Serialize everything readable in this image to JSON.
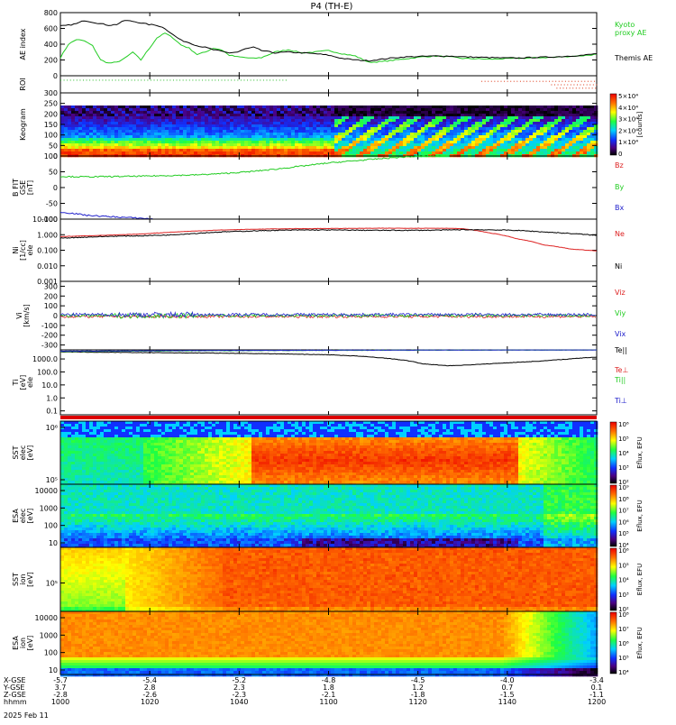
{
  "title": "P4 (TH-E)",
  "date": "2025 Feb 11",
  "colors": {
    "black": "#000000",
    "green": "#22cc22",
    "red": "#dd2222",
    "blue": "#2222cc",
    "ae_green": "#22cc22",
    "roi_red": "#dd3311",
    "roi_green": "#22bb22"
  },
  "chart_data": [
    {
      "type": "line",
      "id": "ae",
      "ylabel": "AE index",
      "ylim": [
        0,
        800
      ],
      "yticks": [
        0,
        200,
        400,
        600,
        800
      ],
      "series": [
        {
          "name": "Kyoto",
          "name2": "proxy AE",
          "color": "#22cc22",
          "x": [
            1000,
            1003,
            1006,
            1009,
            1012,
            1015,
            1018,
            1021,
            1024,
            1027,
            1030,
            1033,
            1036,
            1039,
            1042,
            1045,
            1048,
            1051,
            1054,
            1057,
            1060,
            1063,
            1066,
            1069,
            1072,
            1075,
            1080,
            1085,
            1090,
            1095,
            1100,
            1105,
            1110,
            1115,
            1120,
            1125,
            1130,
            1135,
            1140,
            1145,
            1150,
            1155,
            1160,
            1165,
            1170,
            1175,
            1180,
            1185,
            1190,
            1195,
            1200
          ],
          "y": [
            230,
            400,
            460,
            440,
            380,
            200,
            160,
            170,
            220,
            300,
            200,
            340,
            480,
            540,
            480,
            390,
            350,
            270,
            300,
            350,
            330,
            260,
            240,
            230,
            220,
            230,
            300,
            330,
            290,
            300,
            320,
            280,
            250,
            170,
            180,
            200,
            220,
            240,
            250,
            240,
            220,
            215,
            210,
            215,
            220,
            225,
            230,
            235,
            245,
            255,
            270
          ]
        },
        {
          "name": "Themis AE",
          "color": "#000000",
          "x": [
            1000,
            1003,
            1006,
            1009,
            1012,
            1015,
            1018,
            1021,
            1024,
            1027,
            1030,
            1033,
            1036,
            1039,
            1042,
            1045,
            1048,
            1051,
            1054,
            1057,
            1060,
            1063,
            1066,
            1069,
            1072,
            1075,
            1080,
            1085,
            1090,
            1095,
            1100,
            1105,
            1110,
            1115,
            1120,
            1125,
            1130,
            1135,
            1140,
            1145,
            1150,
            1155,
            1160,
            1165,
            1170,
            1175,
            1180,
            1185,
            1190,
            1195,
            1200
          ],
          "y": [
            630,
            640,
            660,
            700,
            680,
            660,
            640,
            650,
            700,
            690,
            670,
            650,
            640,
            600,
            520,
            450,
            420,
            380,
            360,
            330,
            310,
            290,
            300,
            340,
            360,
            320,
            290,
            300,
            290,
            280,
            260,
            220,
            200,
            190,
            210,
            230,
            240,
            245,
            250,
            250,
            240,
            235,
            230,
            225,
            225,
            230,
            235,
            240,
            250,
            260,
            280
          ]
        }
      ]
    },
    {
      "type": "scatter",
      "id": "roi",
      "ylabel": "ROI",
      "ylim": [
        0,
        3
      ],
      "series": [
        {
          "name": "ROI green",
          "color": "#22bb22",
          "x_start": 1000,
          "x_end": 1085,
          "y": 2.3
        },
        {
          "name": "ROI red",
          "color": "#dd3311",
          "segments": [
            [
              1157,
              1200,
              2.1
            ],
            [
              1183,
              1200,
              1.5
            ],
            [
              1185,
              1200,
              0.9
            ]
          ]
        }
      ]
    },
    {
      "type": "heatmap",
      "id": "keogram",
      "ylabel": "Keogram",
      "ylim": [
        0,
        300
      ],
      "yticks": [
        0,
        50,
        100,
        150,
        200,
        250,
        300
      ],
      "colorbar": {
        "label": "[counts]",
        "ticks": [
          "0",
          "1×10⁴",
          "2×10⁴",
          "3×10⁴",
          "4×10⁴",
          "5×10⁴"
        ]
      }
    },
    {
      "type": "line",
      "id": "bfield",
      "ylabel": "B FIT GSE [nT]",
      "ylabel_lines": [
        "B FIT",
        "GSE",
        "[nT]"
      ],
      "ylim": [
        -100,
        100
      ],
      "yticks": [
        -100,
        -50,
        0,
        50,
        100
      ],
      "series": [
        {
          "name": "Bz",
          "color": "#dd2222",
          "x": [],
          "y": []
        },
        {
          "name": "By",
          "color": "#22cc22",
          "x": [
            1000,
            1010,
            1020,
            1030,
            1040,
            1050,
            1060,
            1070,
            1080,
            1090,
            1100,
            1110,
            1120,
            1130,
            1140,
            1145
          ],
          "y": [
            35,
            34,
            35,
            36,
            38,
            40,
            44,
            50,
            58,
            68,
            78,
            85,
            92,
            98,
            100,
            102
          ]
        },
        {
          "name": "Bx",
          "color": "#2222cc",
          "x": [
            1000,
            1005,
            1010,
            1020,
            1030,
            1035
          ],
          "y": [
            -78,
            -82,
            -88,
            -93,
            -97,
            -100
          ]
        }
      ]
    },
    {
      "type": "line",
      "id": "density",
      "ylabel": "Ni [1/cc]",
      "ylabel_lines": [
        "Ni",
        "[1/cc]",
        "ele"
      ],
      "scale": "log",
      "ylim": [
        0.001,
        10
      ],
      "yticks": [
        0.001,
        0.01,
        0.1,
        1.0,
        10.0
      ],
      "yticklabels": [
        "0.001",
        "0.010",
        "0.100",
        "1.000",
        "10.000"
      ],
      "series": [
        {
          "name": "Ne",
          "color": "#dd2222",
          "x": [
            1000,
            1010,
            1020,
            1030,
            1040,
            1050,
            1060,
            1070,
            1080,
            1090,
            1100,
            1110,
            1120,
            1130,
            1140,
            1145,
            1150,
            1160,
            1170,
            1180,
            1190,
            1200
          ],
          "y": [
            0.75,
            0.85,
            0.95,
            1.1,
            1.4,
            1.7,
            2.0,
            2.2,
            2.35,
            2.45,
            2.5,
            2.55,
            2.6,
            2.6,
            2.6,
            2.6,
            2.4,
            1.3,
            0.55,
            0.22,
            0.12,
            0.09
          ]
        },
        {
          "name": "Ni",
          "color": "#000000",
          "x": [
            1000,
            1010,
            1020,
            1030,
            1040,
            1050,
            1060,
            1070,
            1080,
            1090,
            1100,
            1110,
            1120,
            1130,
            1140,
            1145,
            1150,
            1160,
            1170,
            1180,
            1190,
            1200
          ],
          "y": [
            0.6,
            0.7,
            0.8,
            0.85,
            0.95,
            1.2,
            1.5,
            1.7,
            1.9,
            2.0,
            2.0,
            1.95,
            1.9,
            1.9,
            1.95,
            2.0,
            2.1,
            2.05,
            1.9,
            1.5,
            1.2,
            0.9
          ]
        }
      ]
    },
    {
      "type": "line",
      "id": "velocity",
      "ylabel": "Vi [km/s]",
      "ylabel_lines": [
        "Vi",
        "[km/s]"
      ],
      "ylim": [
        -350,
        350
      ],
      "yticks": [
        -300,
        -200,
        -100,
        0,
        100,
        200,
        300
      ],
      "series": [
        {
          "name": "Viz",
          "color": "#dd2222",
          "mean": -10,
          "noise": 25
        },
        {
          "name": "Viy",
          "color": "#22cc22",
          "mean": 0,
          "noise": 30
        },
        {
          "name": "Vix",
          "color": "#2222cc",
          "mean": 10,
          "noise": 30
        }
      ]
    },
    {
      "type": "line",
      "id": "temperature",
      "ylabel": "Ti [eV]",
      "ylabel_lines": [
        "Ti",
        "[eV]",
        "ele"
      ],
      "scale": "log",
      "ylim": [
        0.05,
        5000
      ],
      "yticks": [
        0.1,
        1.0,
        10.0,
        100.0,
        1000.0
      ],
      "yticklabels": [
        "0.1",
        "1.0",
        "10.0",
        "100.0",
        "1000.0"
      ],
      "legend": [
        "Te||",
        "Te⊥",
        "Ti||",
        "Ti⊥"
      ],
      "series": [
        {
          "name": "Ti",
          "color": "#000000",
          "x": [
            1000,
            1020,
            1040,
            1060,
            1080,
            1100,
            1110,
            1120,
            1130,
            1135,
            1140,
            1145,
            1150,
            1160,
            1170,
            1180,
            1190,
            1200
          ],
          "y": [
            3500,
            3200,
            3000,
            2800,
            2500,
            2100,
            1700,
            1200,
            700,
            420,
            350,
            300,
            330,
            420,
            550,
            700,
            1000,
            1400
          ]
        },
        {
          "name": "Te||",
          "color": "#22cc22",
          "x": [
            1000,
            1050,
            1100,
            1150,
            1200
          ],
          "y": [
            3800,
            4200,
            4600,
            4800,
            4900
          ]
        },
        {
          "name": "Te⊥",
          "color": "#2222cc",
          "x": [
            1000,
            1050,
            1100,
            1150,
            1200
          ],
          "y": [
            4000,
            4400,
            4700,
            4900,
            5000
          ]
        }
      ]
    },
    {
      "type": "heatmap",
      "id": "sst_e",
      "ylabel": "SST [eV]",
      "ylabel_lines": [
        "SST",
        "elec",
        "[eV]"
      ],
      "yticks": [
        "10⁵",
        "10⁶"
      ],
      "colorbar": {
        "label": "Eflux, EFU",
        "ticks": [
          "10²",
          "10³",
          "10⁴",
          "10⁵",
          "10⁶"
        ]
      }
    },
    {
      "type": "heatmap",
      "id": "esa_e",
      "ylabel": "ESA [eV]",
      "ylabel_lines": [
        "ESA",
        "elec",
        "[eV]"
      ],
      "yticks": [
        "10",
        "100",
        "1000",
        "10000"
      ],
      "colorbar": {
        "label": "Eflux, EFU",
        "ticks": [
          "10⁴",
          "10⁵",
          "10⁶",
          "10⁷",
          "10⁸",
          "10⁹"
        ]
      }
    },
    {
      "type": "heatmap",
      "id": "sst_i",
      "ylabel": "SST [eV]",
      "ylabel_lines": [
        "SST",
        "ion",
        "[eV]"
      ],
      "yticks": [
        "10⁵"
      ],
      "colorbar": {
        "label": "Eflux, EFU",
        "ticks": [
          "10²",
          "10³",
          "10⁴",
          "10⁵",
          "10⁶"
        ]
      }
    },
    {
      "type": "heatmap",
      "id": "esa_i",
      "ylabel": "ESA [eV]",
      "ylabel_lines": [
        "ESA",
        "ion",
        "[eV]"
      ],
      "yticks": [
        "10",
        "100",
        "1000",
        "10000"
      ],
      "colorbar": {
        "label": "Eflux, EFU",
        "ticks": [
          "10⁴",
          "10⁵",
          "10⁶",
          "10⁷",
          "10⁸"
        ]
      }
    }
  ],
  "xaxis": {
    "row_labels": [
      "X-GSE",
      "Y-GSE",
      "Z-GSE",
      "hhmm"
    ],
    "columns": [
      {
        "x": 1000,
        "vals": [
          "-5.7",
          "3.7",
          "-2.8",
          "1000"
        ]
      },
      {
        "x": 1020,
        "vals": [
          "-5.4",
          "2.8",
          "-2.6",
          "1020"
        ]
      },
      {
        "x": 1040,
        "vals": [
          "-5.2",
          "2.3",
          "-2.3",
          "1040"
        ]
      },
      {
        "x": 1060,
        "vals": [
          "-4.8",
          "1.8",
          "-2.1",
          "1100"
        ]
      },
      {
        "x": 1080,
        "vals": [
          "-4.5",
          "1.2",
          "-1.8",
          "1120"
        ]
      },
      {
        "x": 1100,
        "vals": [
          "-4.0",
          "0.7",
          "-1.5",
          "1140"
        ]
      },
      {
        "x": 1120,
        "vals": [
          "-3.4",
          "0.1",
          "-1.1",
          "1200"
        ]
      }
    ]
  }
}
